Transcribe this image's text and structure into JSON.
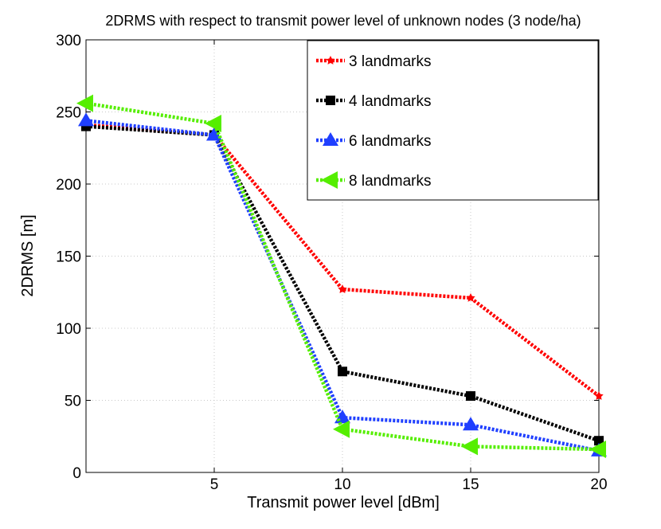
{
  "chart_data": {
    "type": "line",
    "title": "2DRMS with respect to transmit power level of unknown nodes (3 node/ha)",
    "xlabel": "Transmit power level [dBm]",
    "ylabel": "2DRMS [m]",
    "xlim": [
      0,
      20
    ],
    "ylim": [
      0,
      300
    ],
    "xticks": [
      5,
      10,
      15,
      20
    ],
    "yticks": [
      0,
      50,
      100,
      150,
      200,
      250,
      300
    ],
    "grid": true,
    "legend_position": "top-right",
    "x": [
      0,
      5,
      10,
      15,
      20
    ],
    "series": [
      {
        "name": "3 landmarks",
        "color": "#ff0000",
        "marker": "star",
        "values": [
          241,
          234,
          127,
          121,
          53
        ]
      },
      {
        "name": "4 landmarks",
        "color": "#000000",
        "marker": "square",
        "values": [
          240,
          234,
          70,
          53,
          22
        ]
      },
      {
        "name": "6 landmarks",
        "color": "#1f3fff",
        "marker": "triangle-up",
        "values": [
          244,
          234,
          38,
          33,
          15
        ]
      },
      {
        "name": "8 landmarks",
        "color": "#55ee00",
        "marker": "triangle-left",
        "values": [
          256,
          242,
          30,
          18,
          16
        ]
      }
    ]
  }
}
